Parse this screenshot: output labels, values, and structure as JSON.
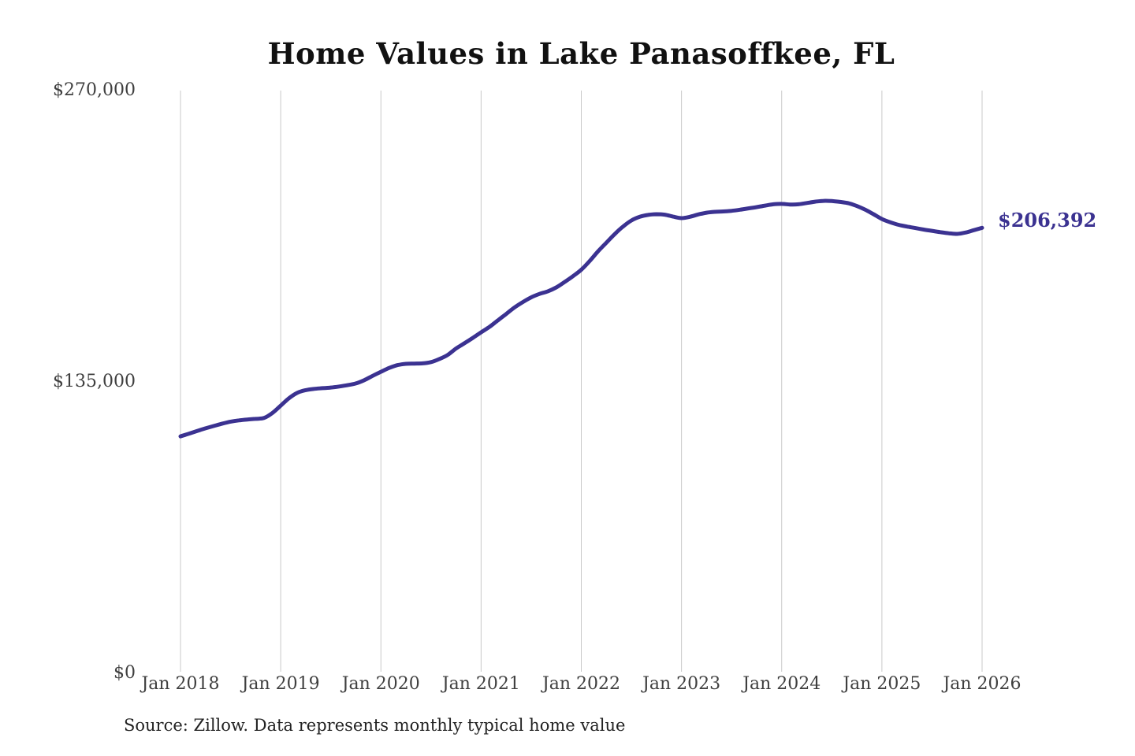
{
  "title": "Home Values in Lake Panasoffkee, FL",
  "source_note": "Source: Zillow. Data represents monthly typical home value",
  "chart_data": {
    "type": "line",
    "title": "Home Values in Lake Panasoffkee, FL",
    "xlabel": "",
    "ylabel": "",
    "ylim": [
      0,
      270000
    ],
    "grid": "vertical-only",
    "legend": "none",
    "end_label": "$206,392",
    "end_value": 206392,
    "x_start": "2018-01",
    "x_end": "2026-01",
    "x_interval": "monthly",
    "x_tick_labels": [
      "Jan 2018",
      "Jan 2019",
      "Jan 2020",
      "Jan 2021",
      "Jan 2022",
      "Jan 2023",
      "Jan 2024",
      "Jan 2025",
      "Jan 2026"
    ],
    "y_ticks": [
      {
        "label": "$0",
        "value": 0
      },
      {
        "label": "$135,000",
        "value": 135000
      },
      {
        "label": "$270,000",
        "value": 270000
      }
    ],
    "colors": {
      "line": "#3b3291",
      "grid": "#c9c9c9",
      "tick_text": "#3f3f3f",
      "title_text": "#111111",
      "end_label_text": "#3b3291"
    },
    "series": [
      {
        "name": "Typical home value",
        "values": [
          109800,
          111000,
          112300,
          113500,
          114600,
          115700,
          116600,
          117200,
          117600,
          117900,
          118300,
          120600,
          124000,
          127500,
          130000,
          131200,
          131800,
          132100,
          132400,
          132900,
          133500,
          134300,
          135800,
          137800,
          139700,
          141500,
          142800,
          143400,
          143500,
          143600,
          144200,
          145600,
          147500,
          150500,
          152900,
          155400,
          158000,
          160500,
          163500,
          166500,
          169500,
          172000,
          174200,
          175800,
          177000,
          178800,
          181300,
          184000,
          187000,
          191000,
          195500,
          199500,
          203500,
          207000,
          209800,
          211500,
          212400,
          212700,
          212500,
          211600,
          210900,
          211500,
          212600,
          213400,
          213800,
          214000,
          214300,
          214800,
          215400,
          216000,
          216700,
          217300,
          217500,
          217200,
          217300,
          217900,
          218500,
          218900,
          218800,
          218400,
          217800,
          216500,
          214800,
          212700,
          210500,
          209000,
          207800,
          207000,
          206300,
          205600,
          205000,
          204400,
          203900,
          203600,
          204200,
          205300,
          206392
        ]
      }
    ]
  }
}
